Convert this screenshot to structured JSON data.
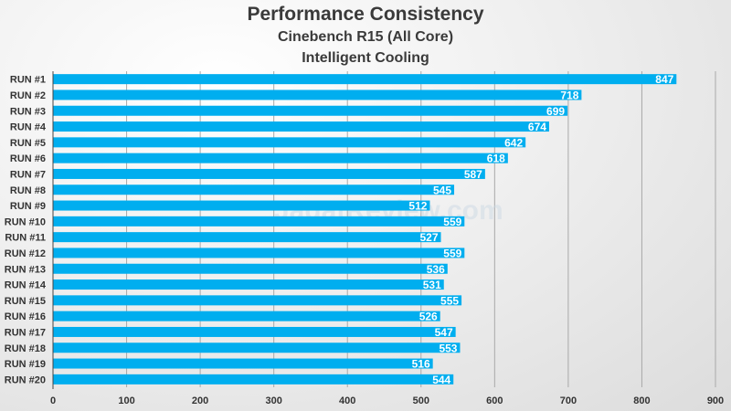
{
  "chart_data": {
    "type": "bar",
    "orientation": "horizontal",
    "title": "Performance Consistency",
    "subtitle": "Cinebench R15 (All Core)",
    "subtitle2": "Intelligent Cooling",
    "xlabel": "",
    "ylabel": "",
    "xlim": [
      0,
      900
    ],
    "xticks": [
      0,
      100,
      200,
      300,
      400,
      500,
      600,
      700,
      800,
      900
    ],
    "grid": true,
    "legend": "none",
    "bar_color": "#00aeef",
    "watermark": "JagatReview.com",
    "categories": [
      "RUN #1",
      "RUN #2",
      "RUN #3",
      "RUN #4",
      "RUN #5",
      "RUN #6",
      "RUN #7",
      "RUN #8",
      "RUN #9",
      "RUN #10",
      "RUN #11",
      "RUN #12",
      "RUN #13",
      "RUN #14",
      "RUN #15",
      "RUN #16",
      "RUN #17",
      "RUN #18",
      "RUN #19",
      "RUN #20"
    ],
    "values": [
      847,
      718,
      699,
      674,
      642,
      618,
      587,
      545,
      512,
      559,
      527,
      559,
      536,
      531,
      555,
      526,
      547,
      553,
      516,
      544
    ]
  }
}
